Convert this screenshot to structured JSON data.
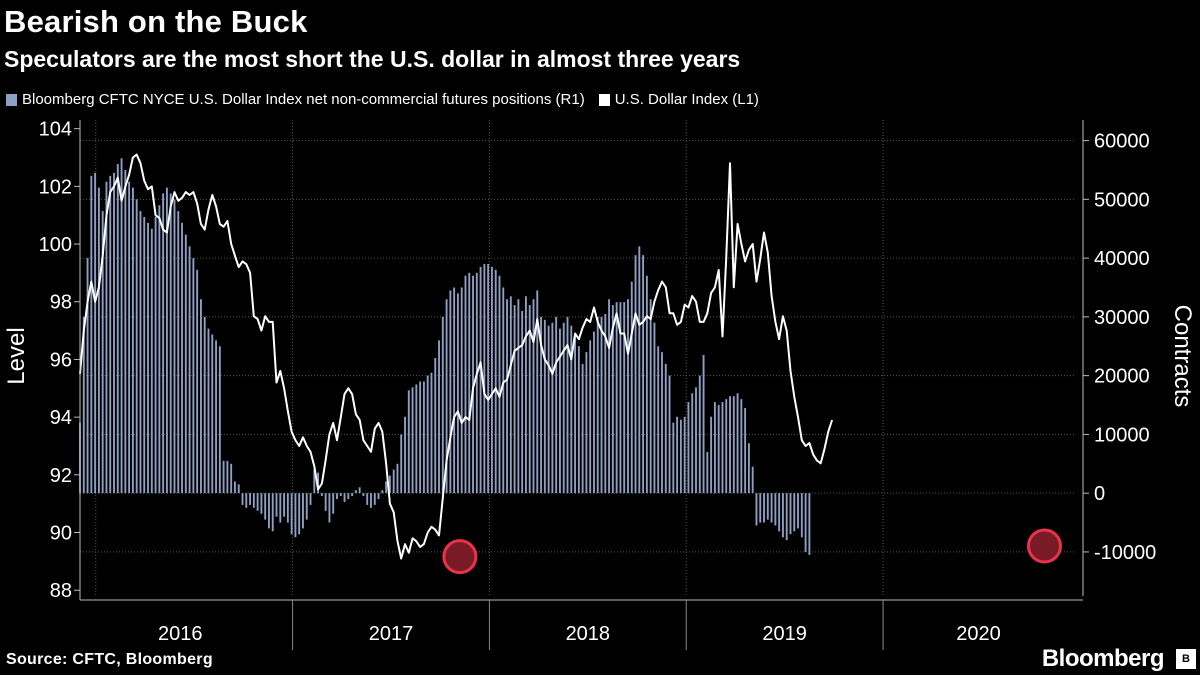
{
  "header": {
    "title": "Bearish on the Buck",
    "subtitle": "Speculators are the most short the U.S. dollar in almost three years"
  },
  "legend": {
    "bars_label": "Bloomberg CFTC NYCE U.S. Dollar Index net non-commercial futures positions (R1)",
    "line_label": "U.S. Dollar Index (L1)"
  },
  "footer": {
    "source": "Source: CFTC, Bloomberg",
    "brand": "Bloomberg"
  },
  "colors": {
    "background": "#000000",
    "bars": "#8e9fc4",
    "line": "#ffffff",
    "grid": "#555555",
    "marker": "#e8334a",
    "marker_fill": "#7a1a26"
  },
  "chart_data": {
    "type": "bar+line",
    "title": "Bearish on the Buck",
    "subtitle": "Speculators are the most short the U.S. dollar in almost three years",
    "left_axis": {
      "label": "Level",
      "range": [
        87.8,
        104.3
      ],
      "ticks": [
        88,
        90,
        92,
        94,
        96,
        98,
        100,
        102,
        104
      ]
    },
    "right_axis": {
      "label": "Contracts",
      "range": [
        -17500,
        63500
      ],
      "ticks": [
        "60000",
        "50000",
        "40000",
        "30000",
        "20000",
        "10000",
        "0",
        "-10000"
      ]
    },
    "x_axis": {
      "year_labels": [
        "2016",
        "2017",
        "2018",
        "2019",
        "2020"
      ]
    },
    "series": [
      {
        "name": "Bloomberg CFTC NYCE U.S. Dollar Index net non-commercial futures positions (R1)",
        "kind": "bar",
        "axis": "right",
        "start": 2015.92,
        "step_years": 0.0192,
        "values": [
          12000,
          30000,
          40000,
          54000,
          54500,
          52000,
          48000,
          53000,
          54000,
          54500,
          56000,
          57000,
          55000,
          53000,
          52000,
          50000,
          48000,
          47000,
          46000,
          45000,
          47000,
          49000,
          51000,
          52000,
          51000,
          50000,
          48000,
          46000,
          44000,
          42000,
          40000,
          38000,
          33000,
          30000,
          28000,
          27000,
          26000,
          25000,
          5500,
          5500,
          5000,
          2000,
          1500,
          -2000,
          -2500,
          -2000,
          -2500,
          -3000,
          -3500,
          -4500,
          -6000,
          -6500,
          -4000,
          -5000,
          -4000,
          -5000,
          -7000,
          -7500,
          -7000,
          -6000,
          -4500,
          -2000,
          4000,
          3500,
          -500,
          -3000,
          -5000,
          -3500,
          -1000,
          -500,
          -1500,
          -1000,
          -500,
          500,
          1000,
          -500,
          -2000,
          -2500,
          -2000,
          -1000,
          500,
          2000,
          3000,
          4000,
          5000,
          10000,
          13000,
          17500,
          18000,
          18500,
          19000,
          19000,
          20000,
          20500,
          23000,
          26000,
          30000,
          33000,
          34500,
          35000,
          34000,
          35000,
          37000,
          37500,
          37000,
          37500,
          38500,
          39000,
          39000,
          38500,
          38000,
          37000,
          35000,
          33000,
          33500,
          32000,
          33000,
          31000,
          33500,
          32000,
          33000,
          34500,
          30000,
          29500,
          28500,
          29000,
          30000,
          28000,
          29000,
          30000,
          28500,
          27000,
          25000,
          22000,
          24000,
          26000,
          27500,
          30000,
          30000,
          30500,
          33000,
          32000,
          32500,
          32500,
          32500,
          33000,
          36000,
          40500,
          42000,
          40500,
          37000,
          33000,
          29000,
          25000,
          24000,
          22000,
          20000,
          12000,
          13000,
          12500,
          13000,
          15500,
          17000,
          18000,
          20000,
          23500,
          7000,
          13000,
          15500,
          15000,
          15500,
          16000,
          16500,
          16500,
          17000,
          16000,
          14500,
          8500,
          4500,
          -5500,
          -5000,
          -5000,
          -4500,
          -5000,
          -5500,
          -6500,
          -7500,
          -8000,
          -7000,
          -6500,
          -6000,
          -7500,
          -10000,
          -10500
        ]
      },
      {
        "name": "U.S. Dollar Index (L1)",
        "kind": "line",
        "axis": "left",
        "start": 2015.92,
        "step_years": 0.0192,
        "values": [
          95.5,
          97.0,
          98.0,
          98.7,
          98.0,
          98.5,
          99.6,
          101.0,
          101.8,
          102.0,
          102.3,
          101.5,
          102.0,
          102.4,
          103.0,
          103.1,
          102.8,
          102.2,
          101.9,
          102.0,
          101.0,
          100.9,
          100.5,
          100.4,
          101.3,
          101.8,
          101.5,
          101.6,
          101.8,
          101.7,
          101.8,
          101.4,
          100.7,
          100.5,
          101.2,
          101.7,
          101.3,
          100.7,
          100.6,
          100.8,
          100.0,
          99.6,
          99.2,
          99.4,
          99.3,
          99.0,
          97.5,
          97.4,
          97.0,
          97.5,
          97.3,
          97.3,
          95.2,
          95.6,
          95.0,
          94.2,
          93.5,
          93.2,
          93.0,
          93.3,
          93.0,
          92.8,
          92.3,
          91.5,
          91.7,
          92.5,
          93.4,
          93.8,
          93.2,
          94.0,
          94.8,
          95.0,
          94.8,
          94.1,
          93.9,
          93.2,
          93.0,
          92.8,
          93.6,
          93.8,
          93.5,
          92.4,
          91.0,
          90.7,
          89.7,
          89.1,
          89.6,
          89.3,
          89.8,
          89.7,
          89.5,
          89.6,
          90.0,
          90.2,
          90.1,
          89.9,
          91.2,
          92.5,
          93.3,
          94.0,
          94.2,
          93.8,
          94.0,
          93.9,
          95.0,
          95.5,
          95.9,
          94.8,
          94.6,
          94.8,
          95.0,
          94.7,
          95.2,
          95.3,
          95.8,
          96.3,
          96.4,
          96.5,
          96.8,
          97.0,
          96.6,
          97.4,
          96.5,
          96.0,
          95.8,
          95.5,
          95.9,
          96.1,
          96.3,
          96.5,
          96.0,
          96.9,
          96.7,
          97.1,
          97.4,
          97.3,
          97.8,
          97.3,
          97.0,
          96.8,
          96.4,
          97.1,
          97.6,
          96.9,
          96.9,
          96.2,
          96.9,
          97.6,
          97.2,
          97.3,
          97.5,
          97.4,
          98.0,
          98.4,
          98.7,
          98.5,
          97.6,
          97.6,
          97.2,
          97.3,
          97.9,
          97.8,
          98.2,
          98.0,
          97.3,
          97.3,
          97.6,
          98.3,
          98.5,
          99.1,
          96.8,
          99.5,
          102.8,
          98.5,
          100.7,
          100.0,
          99.4,
          99.8,
          100.0,
          98.7,
          99.5,
          100.4,
          99.7,
          98.2,
          97.3,
          96.7,
          97.5,
          97.0,
          95.6,
          94.7,
          94.0,
          93.2,
          93.0,
          93.1,
          92.7,
          92.5,
          92.4,
          92.9,
          93.5,
          93.9
        ]
      }
    ],
    "annotations": [
      {
        "kind": "circle",
        "x": 2017.85,
        "y_right": -10800
      },
      {
        "kind": "circle",
        "x": 2020.82,
        "y_right": -9000
      }
    ]
  }
}
